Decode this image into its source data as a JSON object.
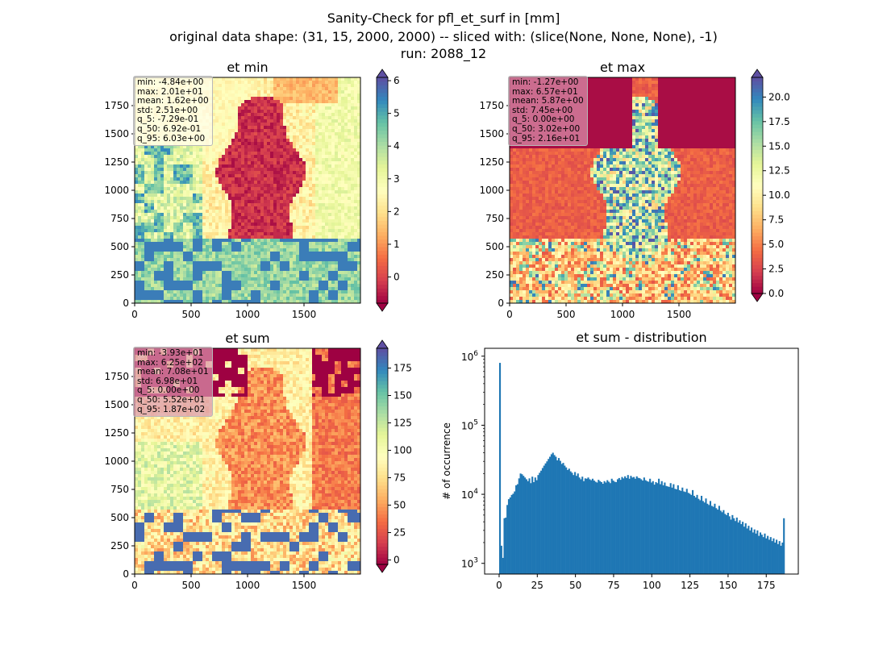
{
  "suptitle": {
    "line1": "Sanity-Check for pfl_et_surf in [mm]",
    "line2": "original data shape: (31, 15, 2000, 2000) -- sliced with: (slice(None, None, None), -1)",
    "line3": "run: 2088_12"
  },
  "colors": {
    "spectral_stops": [
      "#9e0142",
      "#d53e4f",
      "#f46d43",
      "#fdae61",
      "#fee08b",
      "#ffffbf",
      "#e6f598",
      "#abdda4",
      "#66c2a5",
      "#3288bd",
      "#5e4fa2"
    ],
    "hist_bar": "#1f77b4",
    "axis": "#000000"
  },
  "chart_data": [
    {
      "type": "heatmap",
      "title": "et min",
      "colormap": "Spectral",
      "xlim": [
        0,
        2000
      ],
      "ylim": [
        0,
        2000
      ],
      "x_ticks": [
        0,
        500,
        1000,
        1500
      ],
      "y_ticks": [
        0,
        250,
        500,
        750,
        1000,
        1250,
        1500,
        1750
      ],
      "colorbar": {
        "range": [
          -0.8,
          6.1
        ],
        "ticks": [
          0,
          1,
          2,
          3,
          4,
          5,
          6
        ],
        "ticklabels": [
          "0",
          "1",
          "2",
          "3",
          "4",
          "5",
          "6"
        ],
        "extend": "both"
      },
      "stats": [
        "min: -4.84e+00",
        "max: 2.01e+01",
        "mean: 1.62e+00",
        "std: 2.51e+00",
        "q_5: -7.29e-01",
        "q_50: 6.92e-01",
        "q_95: 6.03e+00"
      ]
    },
    {
      "type": "heatmap",
      "title": "et max",
      "colormap": "Spectral",
      "xlim": [
        0,
        2000
      ],
      "ylim": [
        0,
        2000
      ],
      "x_ticks": [
        0,
        500,
        1000,
        1500
      ],
      "y_ticks": [
        0,
        250,
        500,
        750,
        1000,
        1250,
        1500,
        1750
      ],
      "colorbar": {
        "range": [
          0,
          22
        ],
        "ticks": [
          0,
          2.5,
          5,
          7.5,
          10,
          12.5,
          15,
          17.5,
          20
        ],
        "ticklabels": [
          "0.0",
          "2.5",
          "5.0",
          "7.5",
          "10.0",
          "12.5",
          "15.0",
          "17.5",
          "20.0"
        ],
        "extend": "both"
      },
      "stats": [
        "min: -1.27e+00",
        "max: 6.57e+01",
        "mean: 5.87e+00",
        "std: 7.45e+00",
        "q_5: 0.00e+00",
        "q_50: 3.02e+00",
        "q_95: 2.16e+01"
      ]
    },
    {
      "type": "heatmap",
      "title": "et sum",
      "colormap": "Spectral",
      "xlim": [
        0,
        2000
      ],
      "ylim": [
        0,
        2000
      ],
      "x_ticks": [
        0,
        500,
        1000,
        1500
      ],
      "y_ticks": [
        0,
        250,
        500,
        750,
        1000,
        1250,
        1500,
        1750
      ],
      "colorbar": {
        "range": [
          -4,
          193
        ],
        "ticks": [
          0,
          25,
          50,
          75,
          100,
          125,
          150,
          175
        ],
        "ticklabels": [
          "0",
          "25",
          "50",
          "75",
          "100",
          "125",
          "150",
          "175"
        ],
        "extend": "both"
      },
      "stats": [
        "min: -3.93e+01",
        "max: 6.25e+02",
        "mean: 7.08e+01",
        "std: 6.98e+01",
        "q_5: 0.00e+00",
        "q_50: 5.52e+01",
        "q_95: 1.87e+02"
      ]
    },
    {
      "type": "bar",
      "title": "et sum - distribution",
      "xlabel": "",
      "ylabel": "# of occurrence",
      "y_scale": "log",
      "xlim": [
        -9.5,
        196
      ],
      "ylim": [
        700,
        1300000
      ],
      "x_ticks": [
        0,
        25,
        50,
        75,
        100,
        125,
        150,
        175
      ],
      "y_ticks": [
        1000,
        10000,
        100000,
        1000000
      ],
      "y_ticklabels": [
        {
          "base": "10",
          "exp": "3"
        },
        {
          "base": "10",
          "exp": "4"
        },
        {
          "base": "10",
          "exp": "5"
        },
        {
          "base": "10",
          "exp": "6"
        }
      ],
      "bin_range": [
        0,
        187
      ],
      "values": [
        800000,
        1800,
        1200,
        4500,
        4600,
        7000,
        8500,
        9000,
        9800,
        10200,
        11000,
        13500,
        14000,
        17000,
        20000,
        19500,
        18500,
        17500,
        16500,
        15500,
        17000,
        14500,
        18000,
        15000,
        17500,
        16000,
        19000,
        20500,
        22000,
        24000,
        26000,
        28000,
        30000,
        32500,
        35000,
        38000,
        40000,
        37000,
        35000,
        31000,
        33500,
        30500,
        27500,
        28500,
        26000,
        24500,
        22500,
        23500,
        21500,
        20500,
        19000,
        21000,
        18500,
        20000,
        17500,
        16500,
        18000,
        15500,
        17000,
        16800,
        17500,
        16500,
        16000,
        16800,
        15800,
        15200,
        14800,
        16200,
        15500,
        15000,
        14200,
        15500,
        14800,
        16000,
        15200,
        14500,
        16800,
        15800,
        15200,
        15000,
        16500,
        17200,
        16200,
        17800,
        17000,
        18200,
        17200,
        19000,
        16800,
        18500,
        17500,
        17800,
        16800,
        18200,
        17300,
        17100,
        16500,
        15800,
        17500,
        16000,
        15500,
        15200,
        16800,
        14800,
        15500,
        13800,
        15000,
        14500,
        16800,
        14000,
        15500,
        13500,
        14800,
        13200,
        13000,
        12800,
        14500,
        12500,
        14000,
        12000,
        11800,
        13500,
        11500,
        11200,
        12500,
        11000,
        10800,
        12000,
        10500,
        10200,
        9800,
        11500,
        9500,
        9000,
        9800,
        8600,
        8200,
        9500,
        8000,
        7600,
        8700,
        7300,
        7000,
        8000,
        6800,
        6600,
        7300,
        6300,
        6000,
        6800,
        5800,
        5500,
        5900,
        5200,
        5000,
        5400,
        4800,
        4300,
        5000,
        4500,
        4100,
        4600,
        3900,
        4200,
        3700,
        4000,
        3400,
        3800,
        3200,
        3500,
        3000,
        3300,
        2800,
        3100,
        2700,
        3000,
        2500,
        2800,
        2600,
        2400,
        2700,
        2300,
        2500,
        2200,
        2400,
        2100,
        2300,
        2000,
        2200,
        1900,
        2100,
        1800,
        2000,
        4500
      ]
    }
  ]
}
